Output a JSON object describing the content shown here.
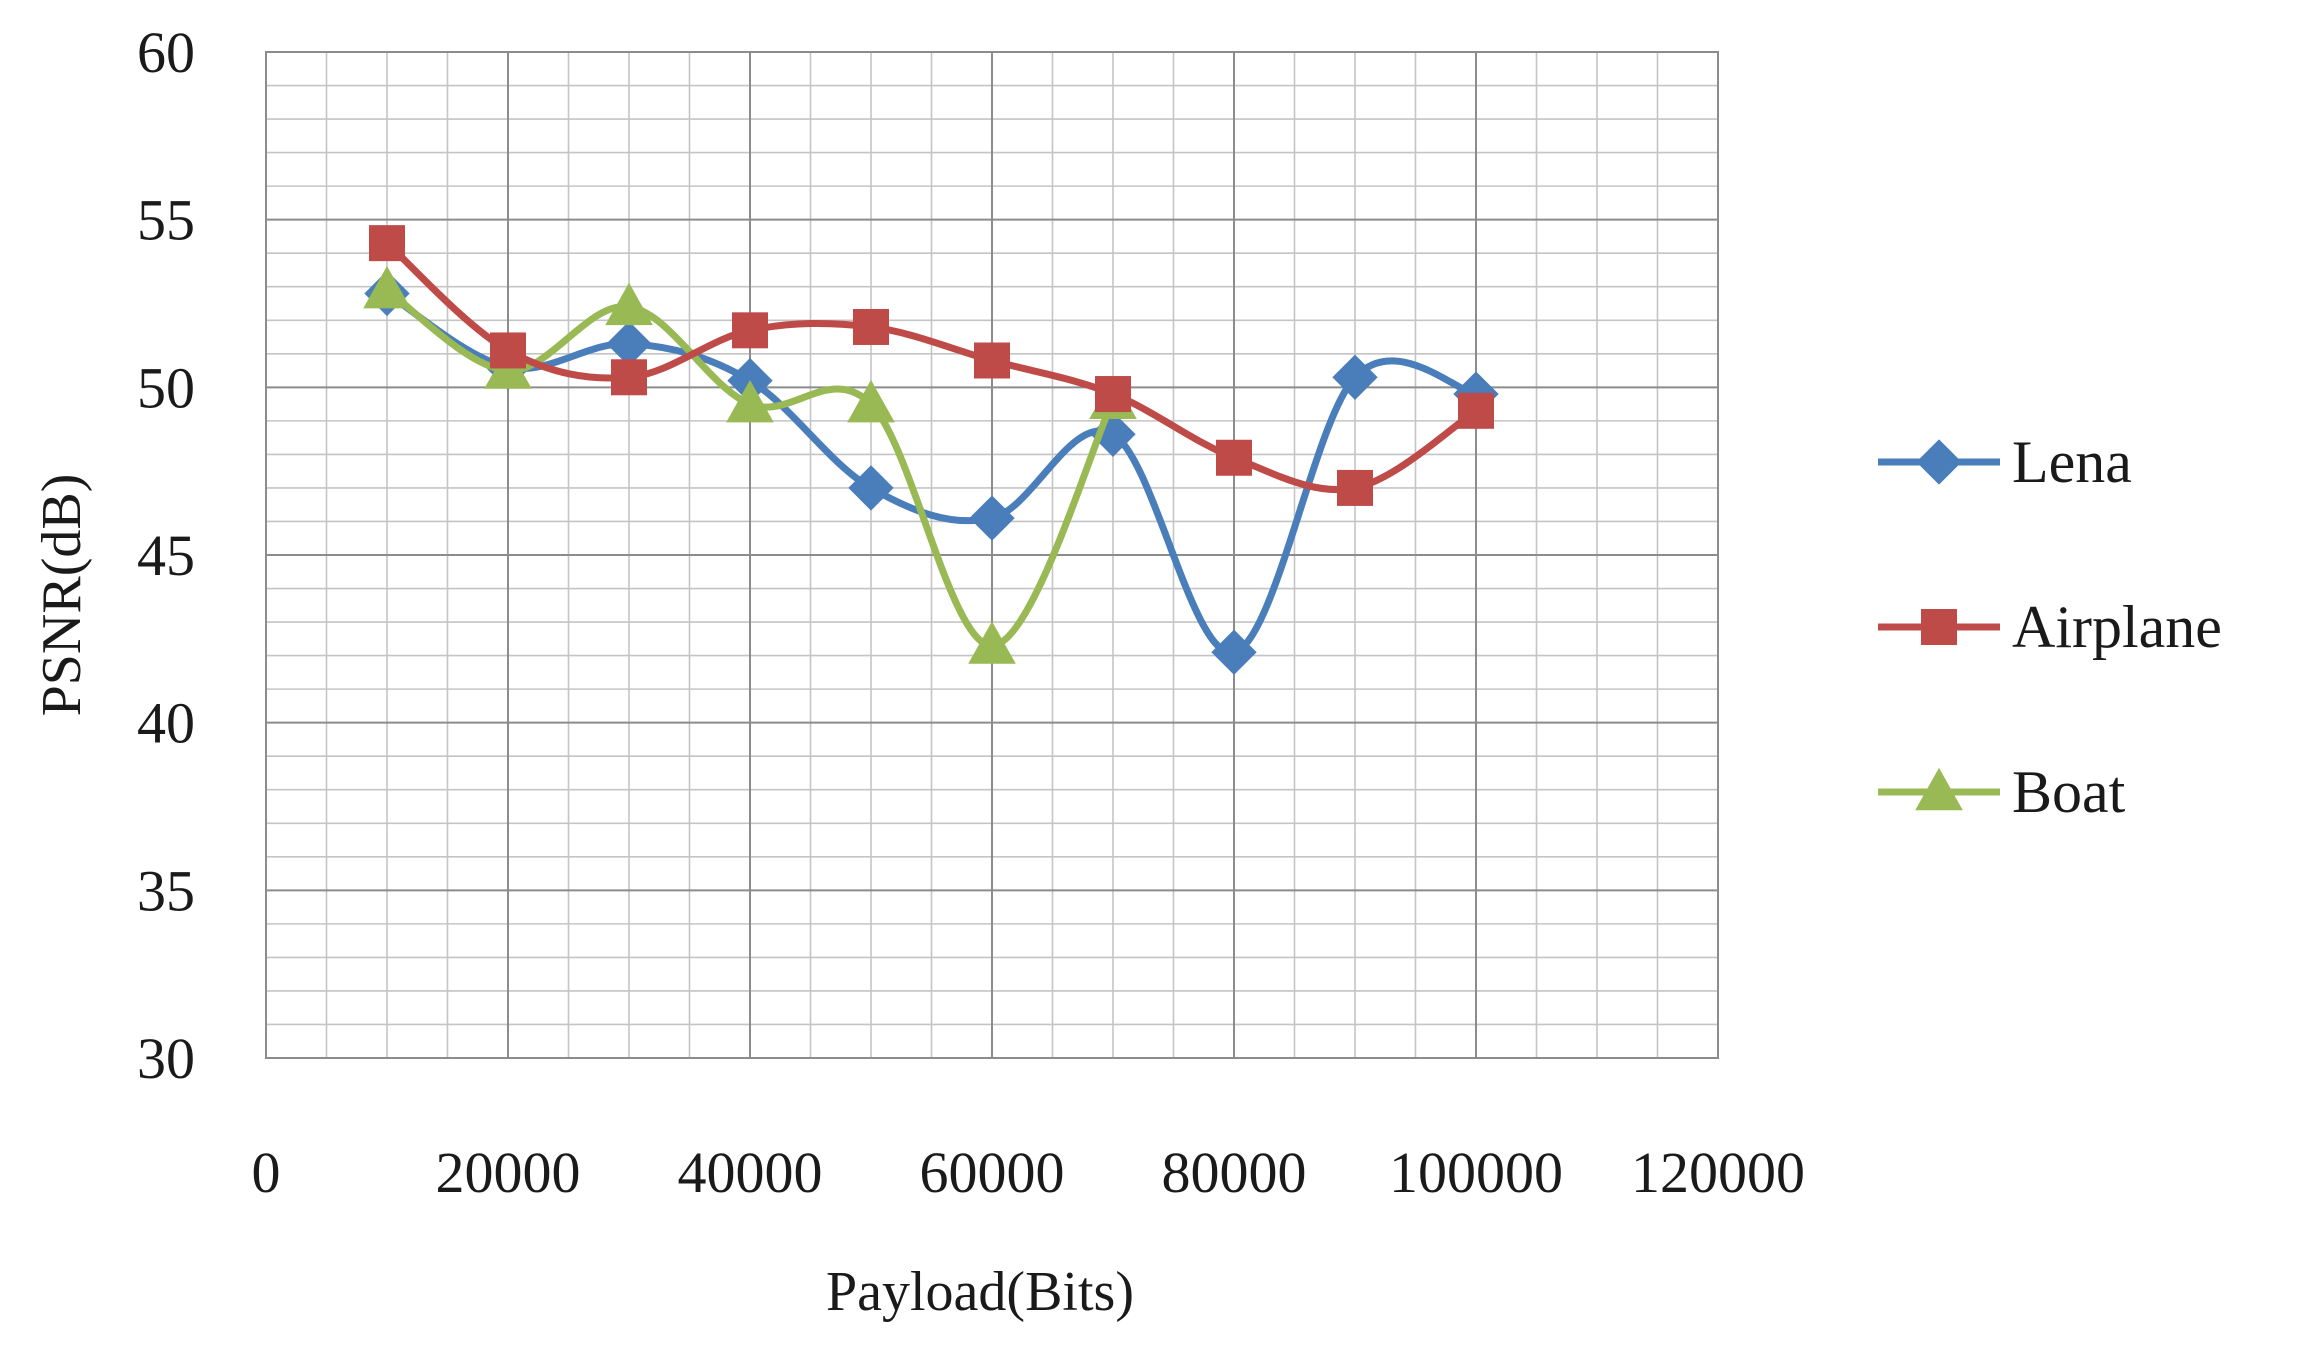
{
  "chart_data": {
    "type": "line",
    "smooth": true,
    "title": "",
    "xlabel": "Payload(Bits)",
    "ylabel": "PSNR(dB)",
    "xlim": [
      0,
      120000
    ],
    "ylim": [
      30,
      60
    ],
    "x_ticks": [
      "0",
      "20000",
      "40000",
      "60000",
      "80000",
      "100000",
      "120000"
    ],
    "y_ticks": [
      "30",
      "35",
      "40",
      "45",
      "50",
      "55",
      "60"
    ],
    "grid": true,
    "legend_position": "right",
    "series": [
      {
        "name": "Lena",
        "color": "#4a7ebb",
        "marker": "diamond",
        "x": [
          10000,
          20000,
          30000,
          40000,
          50000,
          60000,
          70000,
          80000,
          90000,
          100000
        ],
        "y": [
          52.8,
          50.6,
          51.3,
          50.2,
          47.0,
          46.1,
          48.6,
          42.1,
          50.3,
          49.8
        ]
      },
      {
        "name": "Airplane",
        "color": "#be4b48",
        "marker": "square",
        "x": [
          10000,
          20000,
          30000,
          40000,
          50000,
          60000,
          70000,
          80000,
          90000,
          100000
        ],
        "y": [
          54.3,
          51.1,
          50.3,
          51.7,
          51.8,
          50.8,
          49.8,
          47.9,
          47.0,
          49.3
        ]
      },
      {
        "name": "Boat",
        "color": "#98b954",
        "marker": "triangle",
        "x": [
          10000,
          20000,
          30000,
          40000,
          50000,
          60000,
          70000
        ],
        "y": [
          52.9,
          50.5,
          52.4,
          49.5,
          49.5,
          42.3,
          49.6
        ]
      }
    ]
  }
}
